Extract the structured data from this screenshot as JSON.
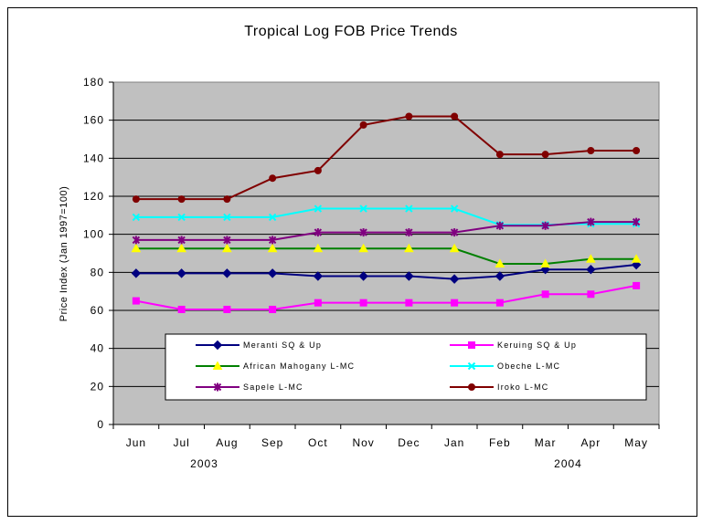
{
  "chart_data": {
    "type": "line",
    "title": "Tropical Log FOB Price Trends",
    "ylabel": "Price Index (Jan 1997=100)",
    "xlabel": "",
    "ylim": [
      0,
      180
    ],
    "yticks": [
      0,
      20,
      40,
      60,
      80,
      100,
      120,
      140,
      160,
      180
    ],
    "grid": true,
    "legend_position": "bottom-inside",
    "categories": [
      "Jun",
      "Jul",
      "Aug",
      "Sep",
      "Oct",
      "Nov",
      "Dec",
      "Jan",
      "Feb",
      "Mar",
      "Apr",
      "May"
    ],
    "year_labels": [
      {
        "label": "2003",
        "category_index": 1.5
      },
      {
        "label": "2004",
        "category_index": 9.5
      }
    ],
    "series": [
      {
        "name": "Meranti SQ & Up",
        "color": "#000080",
        "marker": "diamond",
        "values": [
          79.5,
          79.5,
          79.5,
          79.5,
          78,
          78,
          78,
          76.5,
          78,
          81.5,
          81.5,
          84
        ]
      },
      {
        "name": "Keruing SQ & Up",
        "color": "#ff00ff",
        "marker": "square",
        "values": [
          65,
          60.5,
          60.5,
          60.5,
          64,
          64,
          64,
          64,
          64,
          68.5,
          68.5,
          73
        ]
      },
      {
        "name": "African Mahogany L-MC",
        "color": "#008000",
        "marker_color": "#ffff00",
        "marker": "triangle",
        "values": [
          92.5,
          92.5,
          92.5,
          92.5,
          92.5,
          92.5,
          92.5,
          92.5,
          84.5,
          84.5,
          87,
          87
        ]
      },
      {
        "name": "Obeche L-MC",
        "color": "#00ffff",
        "marker": "x",
        "values": [
          109,
          109,
          109,
          109,
          113.5,
          113.5,
          113.5,
          113.5,
          105,
          105,
          105.5,
          105.5
        ]
      },
      {
        "name": "Sapele L-MC",
        "color": "#800080",
        "marker": "asterisk",
        "values": [
          97,
          97,
          97,
          97,
          101,
          101,
          101,
          101,
          104.5,
          104.5,
          106.5,
          106.5
        ]
      },
      {
        "name": "Iroko L-MC",
        "color": "#800000",
        "marker": "circle",
        "values": [
          118.5,
          118.5,
          118.5,
          129.5,
          133.5,
          157.5,
          162,
          162,
          142,
          142,
          144,
          144
        ]
      }
    ]
  }
}
